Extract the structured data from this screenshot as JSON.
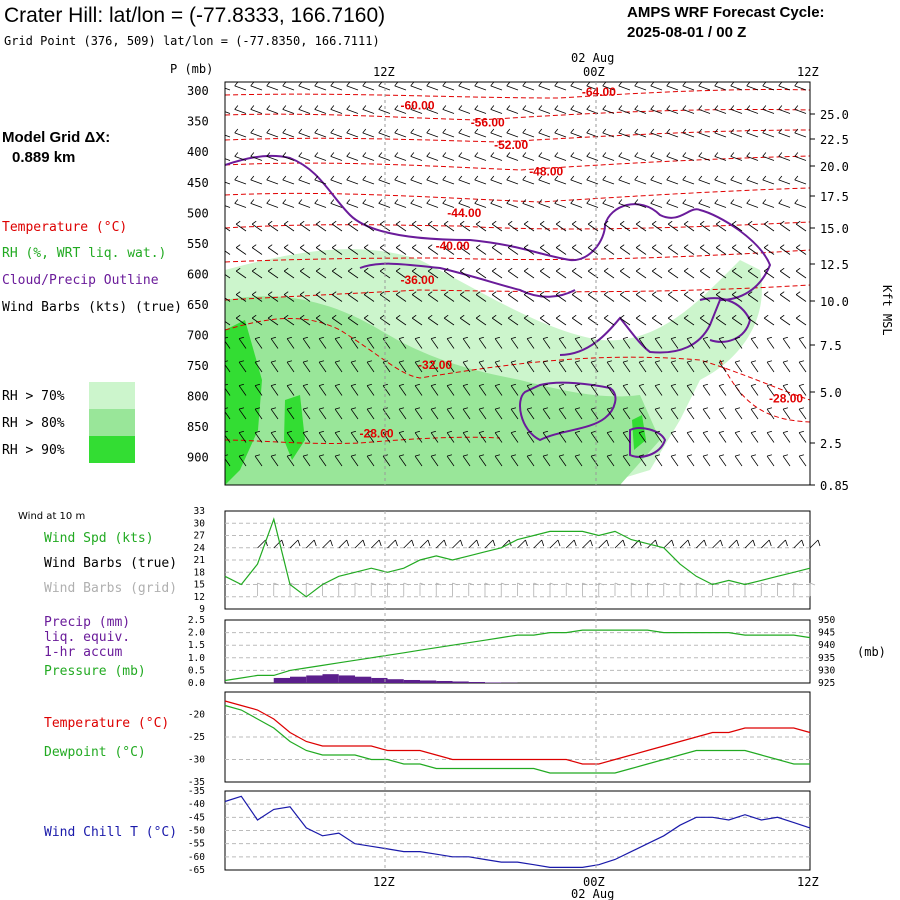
{
  "header": {
    "title": "Crater Hill:  lat/lon = (-77.8333, 166.7160)",
    "subtitle": "Grid Point (376, 509) lat/lon = (-77.8350, 166.7111)",
    "cycle_label": "AMPS WRF Forecast Cycle:",
    "cycle_value": "2025-08-01 / 00  Z"
  },
  "model_grid": {
    "label": "Model Grid ΔX:",
    "value": "0.889 km"
  },
  "time_axis": {
    "ticks": [
      "12Z",
      "00Z",
      "12Z"
    ],
    "date_label": "02 Aug"
  },
  "sounding": {
    "ylabel": "P (mb)",
    "pressure_ticks": [
      "300",
      "350",
      "400",
      "450",
      "500",
      "550",
      "600",
      "650",
      "700",
      "750",
      "800",
      "850",
      "900"
    ],
    "right_label": "Kft MSL",
    "height_ticks": [
      "25.0",
      "22.5",
      "20.0",
      "17.5",
      "15.0",
      "12.5",
      "10.0",
      "7.5",
      "5.0",
      "2.5",
      "0.85"
    ],
    "legend": [
      {
        "text": "Temperature (°C)",
        "color": "#dd0000"
      },
      {
        "text": "RH (%, WRT liq. wat.)",
        "color": "#22aa22"
      },
      {
        "text": "Cloud/Precip Outline",
        "color": "#6a1b9a"
      },
      {
        "text": "Wind Barbs (kts) (true)",
        "color": "#000000"
      }
    ],
    "rh_key": [
      {
        "text": "RH > 70%",
        "color": "#ccf5cc"
      },
      {
        "text": "RH > 80%",
        "color": "#99e699"
      },
      {
        "text": "RH > 90%",
        "color": "#33dd33"
      }
    ],
    "isotherm_labels": [
      {
        "text": "-64.00",
        "x": 0.61,
        "p": 308
      },
      {
        "text": "-60.00",
        "x": 0.3,
        "p": 330
      },
      {
        "text": "-56.00",
        "x": 0.42,
        "p": 358
      },
      {
        "text": "-52.00",
        "x": 0.46,
        "p": 395
      },
      {
        "text": "-48.00",
        "x": 0.52,
        "p": 438
      },
      {
        "text": "-44.00",
        "x": 0.38,
        "p": 506
      },
      {
        "text": "-40.00",
        "x": 0.36,
        "p": 560
      },
      {
        "text": "-36.00",
        "x": 0.3,
        "p": 616
      },
      {
        "text": "-32.00",
        "x": 0.33,
        "p": 755
      },
      {
        "text": "-28.00",
        "x": 0.23,
        "p": 867
      },
      {
        "text": "-28.00",
        "x": 0.93,
        "p": 810
      }
    ]
  },
  "panels": {
    "wind10m": {
      "title": "Wind at 10 m",
      "labels": [
        {
          "text": "Wind Spd (kts)",
          "color": "#22aa22"
        },
        {
          "text": "Wind Barbs (true)",
          "color": "#000000"
        },
        {
          "text": "Wind Barbs (grid)",
          "color": "#b0b0b0"
        }
      ],
      "yticks": [
        "33",
        "30",
        "27",
        "24",
        "21",
        "18",
        "15",
        "12",
        "9"
      ]
    },
    "precip": {
      "labels": [
        {
          "text": "Precip (mm)",
          "color": "#6a1b9a"
        },
        {
          "text": "liq. equiv.",
          "color": "#6a1b9a"
        },
        {
          "text": "1-hr accum",
          "color": "#6a1b9a"
        },
        {
          "text": "Pressure (mb)",
          "color": "#22aa22"
        }
      ],
      "yticks": [
        "2.5",
        "2.0",
        "1.5",
        "1.0",
        "0.5",
        "0.0"
      ],
      "y2ticks": [
        "950",
        "945",
        "940",
        "935",
        "930",
        "925"
      ],
      "y2label": "(mb)"
    },
    "temp": {
      "labels": [
        {
          "text": "Temperature (°C)",
          "color": "#dd0000"
        },
        {
          "text": "Dewpoint (°C)",
          "color": "#22aa22"
        }
      ],
      "yticks": [
        "-20",
        "-25",
        "-30",
        "-35"
      ]
    },
    "windchill": {
      "labels": [
        {
          "text": "Wind Chill T (°C)",
          "color": "#1a1aaa"
        }
      ],
      "yticks": [
        "-35",
        "-40",
        "-45",
        "-50",
        "-55",
        "-60",
        "-65"
      ]
    }
  },
  "colors": {
    "temperature": "#dd0000",
    "dewpoint": "#22aa22",
    "pressure": "#22aa22",
    "precip": "#5b1f8c",
    "windchill": "#1a1aaa",
    "cloud": "#6a1b9a",
    "windspeed": "#22aa22"
  },
  "chart_data": [
    {
      "type": "line",
      "title": "Wind at 10 m",
      "ylabel": "Wind Spd (kts)",
      "x_hours": [
        0,
        1,
        2,
        3,
        4,
        5,
        6,
        7,
        8,
        9,
        10,
        11,
        12,
        13,
        14,
        15,
        16,
        17,
        18,
        19,
        20,
        21,
        22,
        23,
        24,
        25,
        26,
        27,
        28,
        29,
        30,
        31,
        32,
        33,
        34,
        35,
        36
      ],
      "series": [
        {
          "name": "Wind Spd (kts)",
          "values": [
            17,
            15,
            20,
            31,
            15,
            12,
            15,
            17,
            18,
            19,
            18,
            19,
            21,
            22,
            21,
            22,
            23,
            24,
            26,
            27,
            28,
            28,
            28,
            27,
            28,
            26,
            25,
            24,
            20,
            17,
            15,
            16,
            15,
            16,
            17,
            18,
            19
          ]
        }
      ],
      "ylim": [
        9,
        33
      ]
    },
    {
      "type": "bar",
      "title": "Precip (mm) liq. equiv. 1-hr accum",
      "x_hours": [
        0,
        1,
        2,
        3,
        4,
        5,
        6,
        7,
        8,
        9,
        10,
        11,
        12,
        13,
        14,
        15,
        16,
        17,
        18
      ],
      "values": [
        0,
        0,
        0,
        0.2,
        0.25,
        0.3,
        0.35,
        0.3,
        0.25,
        0.2,
        0.15,
        0.12,
        0.1,
        0.08,
        0.06,
        0.04,
        0.02,
        0.01,
        0
      ],
      "ylim": [
        0,
        2.5
      ]
    },
    {
      "type": "line",
      "title": "Pressure (mb)",
      "x_hours": [
        0,
        1,
        2,
        3,
        4,
        5,
        6,
        7,
        8,
        9,
        10,
        11,
        12,
        13,
        14,
        15,
        16,
        17,
        18,
        19,
        20,
        21,
        22,
        23,
        24,
        25,
        26,
        27,
        28,
        29,
        30,
        31,
        32,
        33,
        34,
        35,
        36
      ],
      "series": [
        {
          "name": "Pressure (mb)",
          "values": [
            926,
            927,
            928,
            928,
            930,
            931,
            932,
            933,
            934,
            935,
            936,
            937,
            938,
            939,
            940,
            941,
            942,
            943,
            944,
            944,
            945,
            945,
            946,
            946,
            946,
            946,
            946,
            945,
            945,
            945,
            945,
            945,
            944,
            944,
            944,
            944,
            943
          ]
        }
      ],
      "ylim": [
        925,
        950
      ]
    },
    {
      "type": "line",
      "title": "Temperature / Dewpoint",
      "x_hours": [
        0,
        1,
        2,
        3,
        4,
        5,
        6,
        7,
        8,
        9,
        10,
        11,
        12,
        13,
        14,
        15,
        16,
        17,
        18,
        19,
        20,
        21,
        22,
        23,
        24,
        25,
        26,
        27,
        28,
        29,
        30,
        31,
        32,
        33,
        34,
        35,
        36
      ],
      "series": [
        {
          "name": "Temperature (°C)",
          "values": [
            -17,
            -18,
            -19,
            -21,
            -24,
            -26,
            -27,
            -27,
            -27,
            -27,
            -28,
            -28,
            -28,
            -29,
            -30,
            -30,
            -30,
            -30,
            -30,
            -30,
            -30,
            -30,
            -31,
            -31,
            -30,
            -29,
            -28,
            -27,
            -26,
            -25,
            -24,
            -24,
            -23,
            -23,
            -23,
            -23,
            -24
          ]
        },
        {
          "name": "Dewpoint (°C)",
          "values": [
            -18,
            -19,
            -21,
            -23,
            -26,
            -28,
            -29,
            -29,
            -29,
            -30,
            -30,
            -31,
            -31,
            -32,
            -32,
            -32,
            -32,
            -32,
            -32,
            -32,
            -33,
            -33,
            -33,
            -33,
            -33,
            -32,
            -31,
            -30,
            -29,
            -28,
            -28,
            -28,
            -28,
            -29,
            -30,
            -31,
            -31
          ]
        }
      ],
      "ylim": [
        -35,
        -15
      ]
    },
    {
      "type": "line",
      "title": "Wind Chill T",
      "x_hours": [
        0,
        1,
        2,
        3,
        4,
        5,
        6,
        7,
        8,
        9,
        10,
        11,
        12,
        13,
        14,
        15,
        16,
        17,
        18,
        19,
        20,
        21,
        22,
        23,
        24,
        25,
        26,
        27,
        28,
        29,
        30,
        31,
        32,
        33,
        34,
        35,
        36
      ],
      "series": [
        {
          "name": "Wind Chill T (°C)",
          "values": [
            -39,
            -37,
            -46,
            -42,
            -41,
            -49,
            -52,
            -51,
            -55,
            -56,
            -57,
            -58,
            -58,
            -59,
            -60,
            -60,
            -61,
            -62,
            -62,
            -63,
            -64,
            -64,
            -64,
            -63,
            -61,
            -58,
            -55,
            -52,
            -48,
            -45,
            -45,
            -46,
            -44,
            -46,
            -45,
            -47,
            -49
          ]
        }
      ],
      "ylim": [
        -65,
        -35
      ]
    }
  ]
}
